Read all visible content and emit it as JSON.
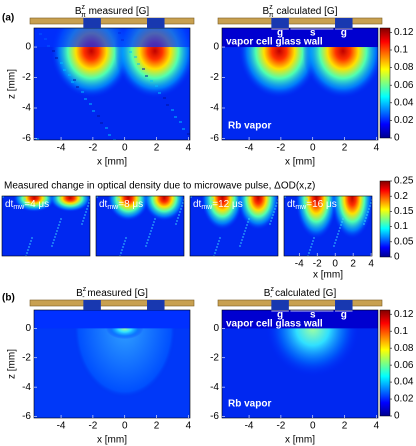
{
  "panel_a": {
    "label": "(a)",
    "maps": [
      {
        "title": {
          "base": "B",
          "sup": "z",
          "sub": "π",
          "rest": " measured [G]"
        }
      },
      {
        "title": {
          "base": "B",
          "sup": "z",
          "sub": "π",
          "rest": " calculated [G]"
        },
        "gaps": [
          "g",
          "s",
          "g"
        ],
        "wall": "vapor cell glass wall",
        "vapor": "Rb vapor"
      }
    ],
    "x_label": "x [mm]",
    "z_label": "z [mm]",
    "xlim": [
      -5.7,
      4.1
    ],
    "xticks": [
      -4,
      -2,
      0,
      2,
      4
    ],
    "zlim": [
      -6.1,
      1.25
    ],
    "zticks": [
      0,
      -2,
      -4,
      -6
    ],
    "clim": [
      0,
      0.125
    ],
    "colorbar_ticks": [
      0,
      0.02,
      0.04,
      0.06,
      0.08,
      0.1,
      0.12
    ]
  },
  "panel_middle": {
    "title": "Measured change in optical density due to microwave pulse, ΔOD(x,z)",
    "frames": [
      {
        "base": "dt",
        "sub": "mw",
        "rest": "=4 μs"
      },
      {
        "base": "dt",
        "sub": "mw",
        "rest": "=8 μs"
      },
      {
        "base": "dt",
        "sub": "mw",
        "rest": "=12 μs"
      },
      {
        "base": "dt",
        "sub": "mw",
        "rest": "=16 μs"
      }
    ],
    "x_label": "x [mm]",
    "xlim": [
      -5.7,
      4.1
    ],
    "xticks": [
      -4,
      -2,
      0,
      2,
      4
    ],
    "clim": [
      0,
      0.25
    ],
    "colorbar_ticks": [
      0,
      0.05,
      0.1,
      0.15,
      0.2,
      0.25
    ]
  },
  "panel_b": {
    "label": "(b)",
    "maps": [
      {
        "title": {
          "base": "B",
          "sup": "z",
          "sub": "-",
          "rest": " measured [G]"
        }
      },
      {
        "title": {
          "base": "B",
          "sup": "z",
          "sub": "-",
          "rest": " calculated [G]"
        },
        "gaps": [
          "g",
          "s",
          "g"
        ],
        "wall": "vapor cell glass wall",
        "vapor": "Rb vapor"
      }
    ],
    "x_label": "x [mm]",
    "z_label": "z [mm]",
    "xlim": [
      -5.7,
      4.1
    ],
    "xticks": [
      -4,
      -2,
      0,
      2,
      4
    ],
    "zlim": [
      -6.1,
      1.25
    ],
    "zticks": [
      0,
      -2,
      -4,
      -6
    ],
    "clim": [
      0,
      0.125
    ],
    "colorbar_ticks": [
      0,
      0.02,
      0.04,
      0.06,
      0.08,
      0.1,
      0.12
    ]
  }
}
